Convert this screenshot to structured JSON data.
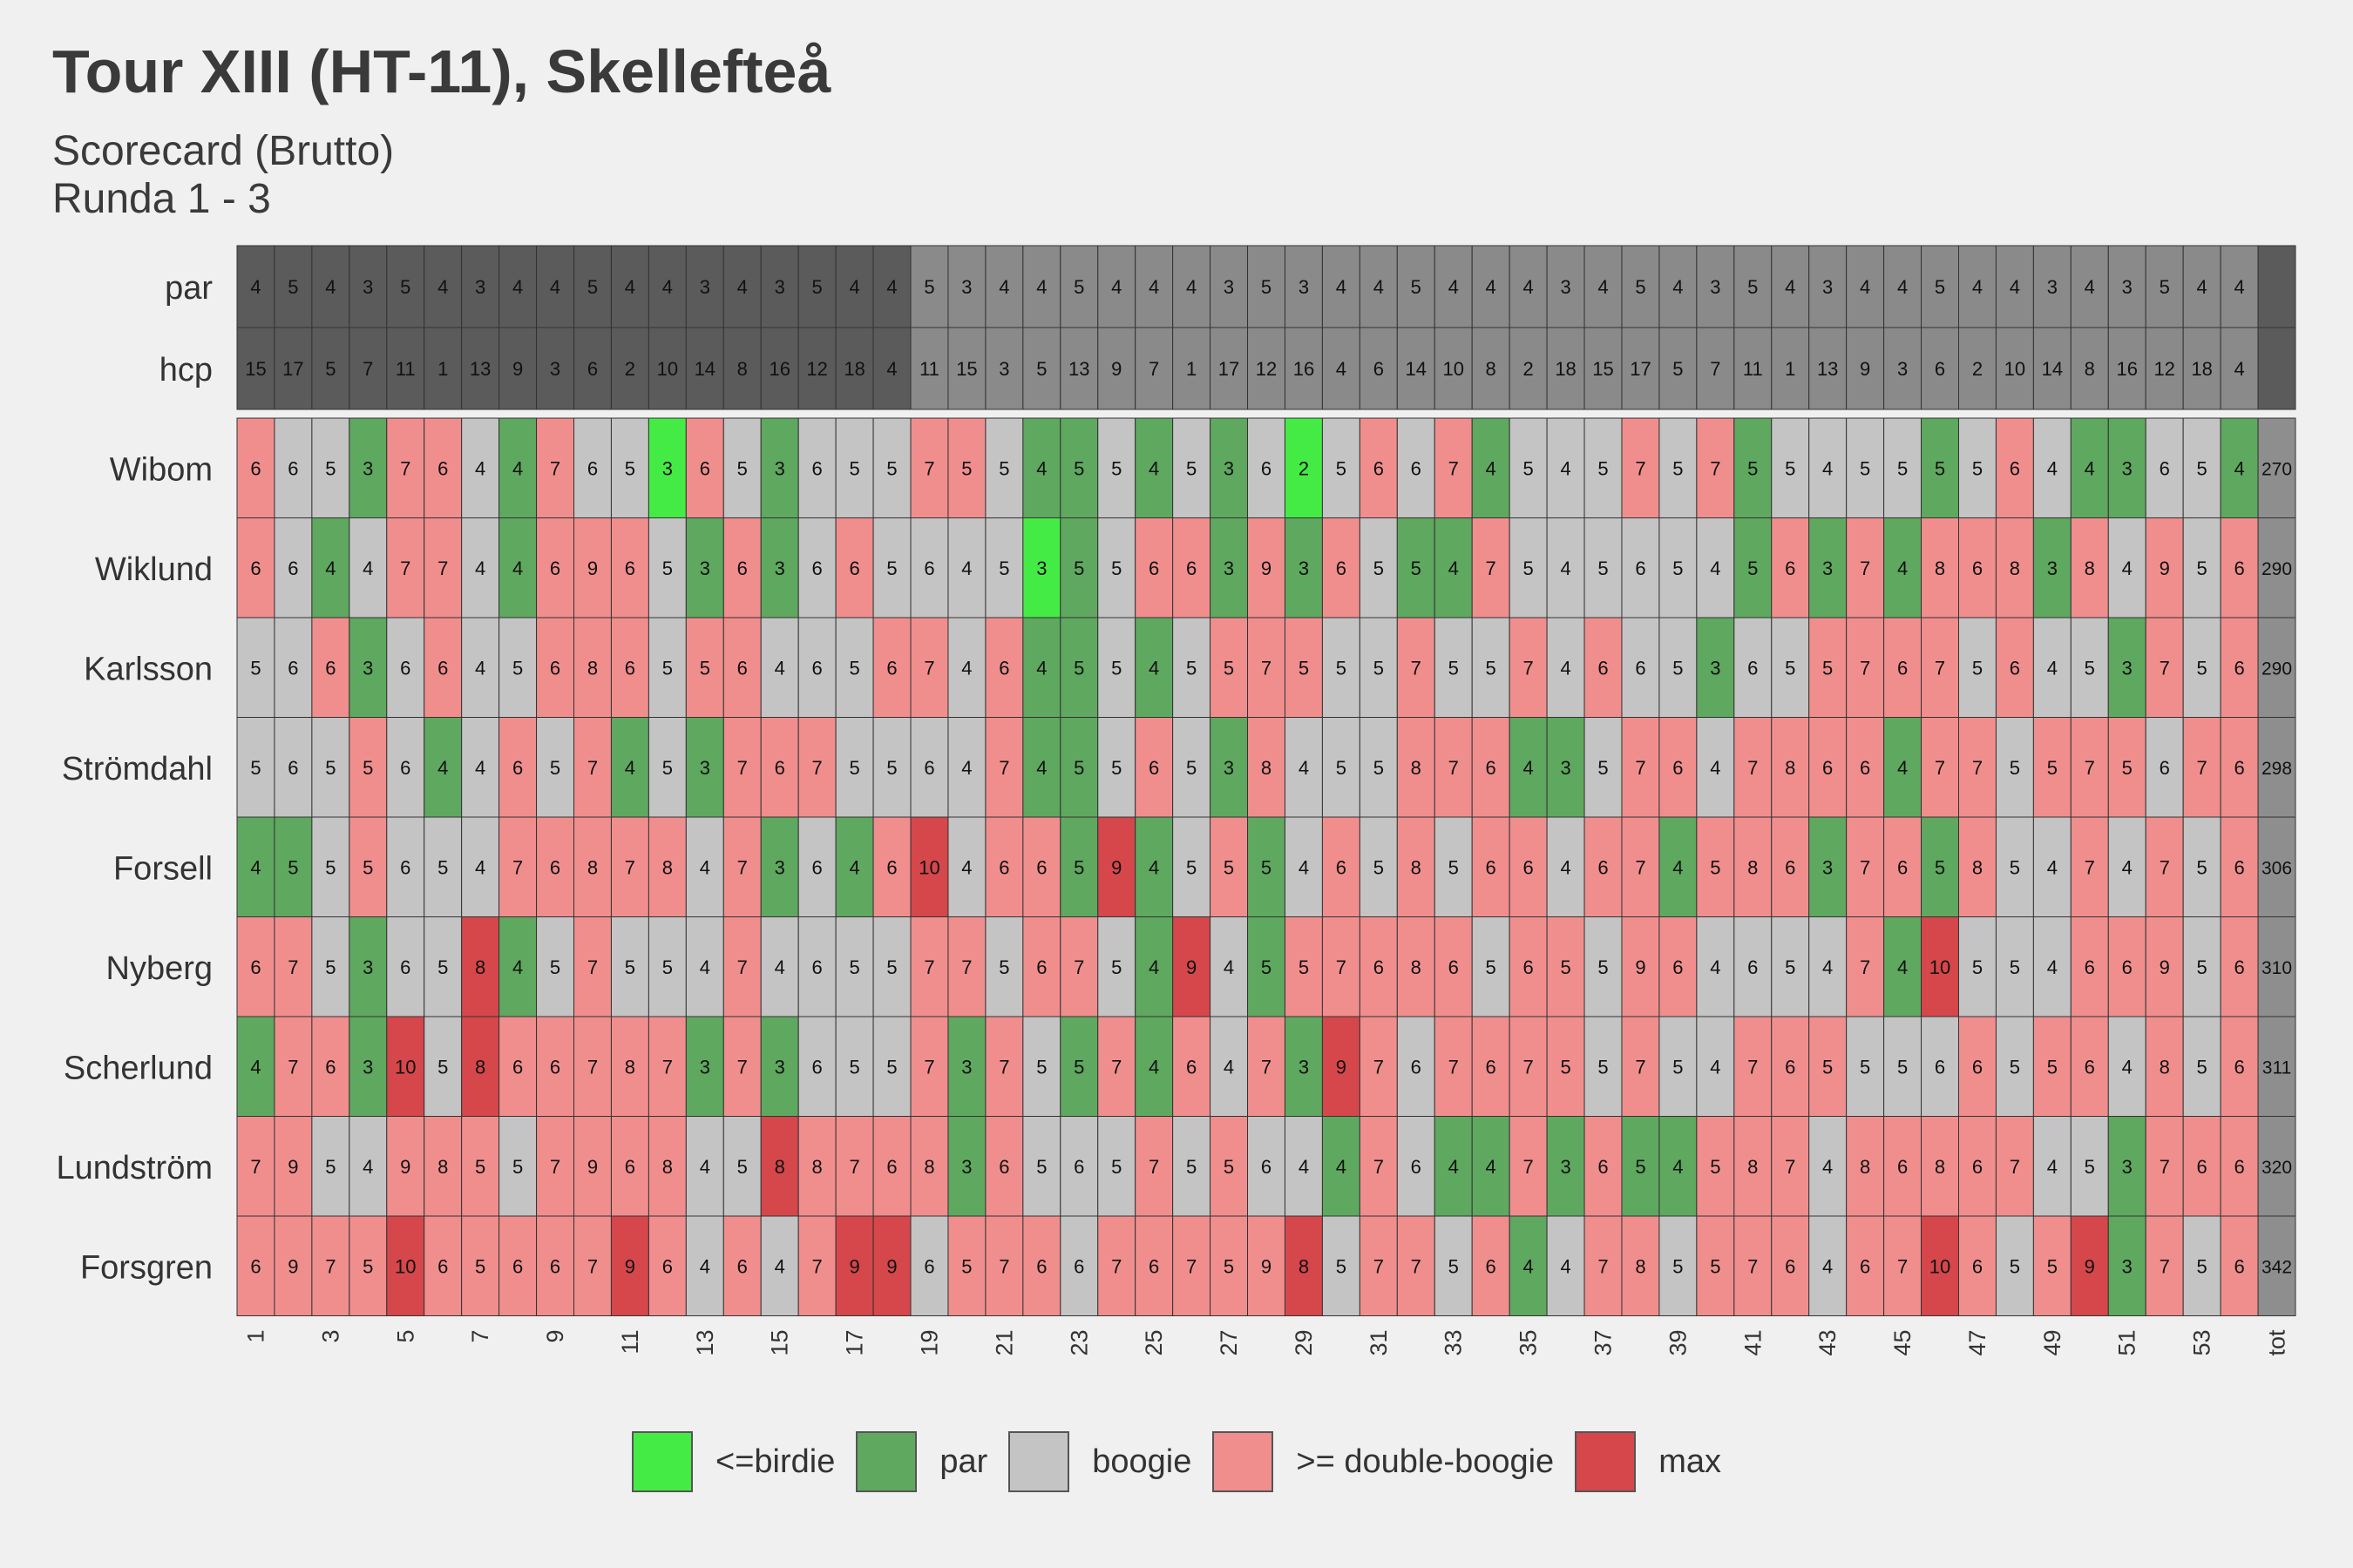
{
  "title": "Tour XIII (HT-11), Skellefteå",
  "subtitle_line1": "Scorecard (Brutto)",
  "subtitle_line2": "Runda 1 - 3",
  "colors": {
    "birdie": "#45eb45",
    "par": "#5fa85f",
    "boogie": "#c4c4c4",
    "double": "#f08e8e",
    "max": "#d5474b",
    "header_round_dark": "#5b5b5b",
    "header_round_light": "#8a8a8a",
    "header_total": "#5b5b5b",
    "total_cell": "#8e8e8e"
  },
  "legend": [
    {
      "key": "birdie",
      "label": "<=birdie"
    },
    {
      "key": "par",
      "label": "par"
    },
    {
      "key": "boogie",
      "label": "boogie"
    },
    {
      "key": "double",
      "label": ">= double-boogie"
    },
    {
      "key": "max",
      "label": "max"
    }
  ],
  "chart_data": {
    "type": "heatmap",
    "x_tick_labels": [
      "1",
      "3",
      "5",
      "7",
      "9",
      "11",
      "13",
      "15",
      "17",
      "19",
      "21",
      "23",
      "25",
      "27",
      "29",
      "31",
      "33",
      "35",
      "37",
      "39",
      "41",
      "43",
      "45",
      "47",
      "49",
      "51",
      "53",
      "tot"
    ],
    "header_rows": [
      {
        "label": "par",
        "values": [
          4,
          5,
          4,
          3,
          5,
          4,
          3,
          4,
          4,
          5,
          4,
          4,
          3,
          4,
          3,
          5,
          4,
          4,
          5,
          3,
          4,
          4,
          5,
          4,
          4,
          4,
          3,
          5,
          3,
          4,
          4,
          5,
          4,
          4,
          4,
          3,
          4,
          5,
          4,
          3,
          5,
          4,
          3,
          4,
          4,
          5,
          4,
          4,
          3,
          4,
          3,
          5,
          4,
          4
        ]
      },
      {
        "label": "hcp",
        "values": [
          15,
          17,
          5,
          7,
          11,
          1,
          13,
          9,
          3,
          6,
          2,
          10,
          14,
          8,
          16,
          12,
          18,
          4,
          11,
          15,
          3,
          5,
          13,
          9,
          7,
          1,
          17,
          12,
          16,
          4,
          6,
          14,
          10,
          8,
          2,
          18,
          15,
          17,
          5,
          7,
          11,
          1,
          13,
          9,
          3,
          6,
          2,
          10,
          14,
          8,
          16,
          12,
          18,
          4
        ]
      }
    ],
    "players": [
      {
        "name": "Wibom",
        "total": 270,
        "scores": [
          6,
          6,
          5,
          3,
          7,
          6,
          4,
          4,
          7,
          6,
          5,
          3,
          6,
          5,
          3,
          6,
          5,
          5,
          7,
          5,
          5,
          4,
          5,
          5,
          4,
          5,
          3,
          6,
          2,
          5,
          6,
          6,
          7,
          4,
          5,
          4,
          5,
          7,
          5,
          7,
          5,
          5,
          4,
          5,
          5,
          5,
          5,
          6,
          4,
          4,
          3,
          6,
          5,
          4
        ]
      },
      {
        "name": "Wiklund",
        "total": 290,
        "scores": [
          6,
          6,
          4,
          4,
          7,
          7,
          4,
          4,
          6,
          9,
          6,
          5,
          3,
          6,
          3,
          6,
          6,
          5,
          6,
          4,
          5,
          3,
          5,
          5,
          6,
          6,
          3,
          9,
          3,
          6,
          5,
          5,
          4,
          7,
          5,
          4,
          5,
          6,
          5,
          4,
          5,
          6,
          3,
          7,
          4,
          8,
          6,
          8,
          3,
          8,
          4,
          9,
          5,
          6
        ]
      },
      {
        "name": "Karlsson",
        "total": 290,
        "scores": [
          5,
          6,
          6,
          3,
          6,
          6,
          4,
          5,
          6,
          8,
          6,
          5,
          5,
          6,
          4,
          6,
          5,
          6,
          7,
          4,
          6,
          4,
          5,
          5,
          4,
          5,
          5,
          7,
          5,
          5,
          5,
          7,
          5,
          5,
          7,
          4,
          6,
          6,
          5,
          3,
          6,
          5,
          5,
          7,
          6,
          7,
          5,
          6,
          4,
          5,
          3,
          7,
          5,
          6
        ]
      },
      {
        "name": "Strömdahl",
        "total": 298,
        "scores": [
          5,
          6,
          5,
          5,
          6,
          4,
          4,
          6,
          5,
          7,
          4,
          5,
          3,
          7,
          6,
          7,
          5,
          5,
          6,
          4,
          7,
          4,
          5,
          5,
          6,
          5,
          3,
          8,
          4,
          5,
          5,
          8,
          7,
          6,
          4,
          3,
          5,
          7,
          6,
          4,
          7,
          8,
          6,
          6,
          4,
          7,
          7,
          5,
          5,
          7,
          5,
          6,
          7,
          6
        ]
      },
      {
        "name": "Forsell",
        "total": 306,
        "scores": [
          4,
          5,
          5,
          5,
          6,
          5,
          4,
          7,
          6,
          8,
          7,
          8,
          4,
          7,
          3,
          6,
          4,
          6,
          10,
          4,
          6,
          6,
          5,
          9,
          4,
          5,
          5,
          5,
          4,
          6,
          5,
          8,
          5,
          6,
          6,
          4,
          6,
          7,
          4,
          5,
          8,
          6,
          3,
          7,
          6,
          5,
          8,
          5,
          4,
          7,
          4,
          7,
          5,
          6
        ]
      },
      {
        "name": "Nyberg",
        "total": 310,
        "scores": [
          6,
          7,
          5,
          3,
          6,
          5,
          8,
          4,
          5,
          7,
          5,
          5,
          4,
          7,
          4,
          6,
          5,
          5,
          7,
          7,
          5,
          6,
          7,
          5,
          4,
          9,
          4,
          5,
          5,
          7,
          6,
          8,
          6,
          5,
          6,
          5,
          5,
          9,
          6,
          4,
          6,
          5,
          4,
          7,
          4,
          10,
          5,
          5,
          4,
          6,
          6,
          9,
          5,
          6
        ]
      },
      {
        "name": "Scherlund",
        "total": 311,
        "scores": [
          4,
          7,
          6,
          3,
          10,
          5,
          8,
          6,
          6,
          7,
          8,
          7,
          3,
          7,
          3,
          6,
          5,
          5,
          7,
          3,
          7,
          5,
          5,
          7,
          4,
          6,
          4,
          7,
          3,
          9,
          7,
          6,
          7,
          6,
          7,
          5,
          5,
          7,
          5,
          4,
          7,
          6,
          5,
          5,
          5,
          6,
          6,
          5,
          5,
          6,
          4,
          8,
          5,
          6
        ]
      },
      {
        "name": "Lundström",
        "total": 320,
        "scores": [
          7,
          9,
          5,
          4,
          9,
          8,
          5,
          5,
          7,
          9,
          6,
          8,
          4,
          5,
          8,
          8,
          7,
          6,
          8,
          3,
          6,
          5,
          6,
          5,
          7,
          5,
          5,
          6,
          4,
          4,
          7,
          6,
          4,
          4,
          7,
          3,
          6,
          5,
          4,
          5,
          8,
          7,
          4,
          8,
          6,
          8,
          6,
          7,
          4,
          5,
          3,
          7,
          6,
          6
        ]
      },
      {
        "name": "Forsgren",
        "total": 342,
        "scores": [
          6,
          9,
          7,
          5,
          10,
          6,
          5,
          6,
          6,
          7,
          9,
          6,
          4,
          6,
          4,
          7,
          9,
          9,
          6,
          5,
          7,
          6,
          6,
          7,
          6,
          7,
          5,
          9,
          8,
          5,
          7,
          7,
          5,
          6,
          4,
          4,
          7,
          8,
          5,
          5,
          7,
          6,
          4,
          6,
          7,
          10,
          6,
          5,
          5,
          9,
          3,
          7,
          5,
          6
        ]
      }
    ]
  }
}
